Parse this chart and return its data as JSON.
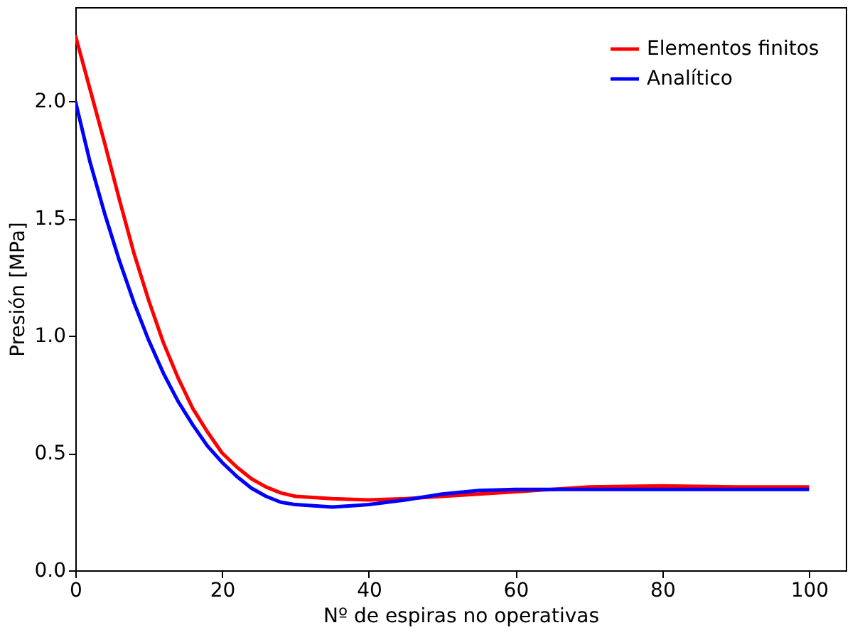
{
  "chart_data": {
    "type": "line",
    "xlabel": "Nº de espiras no operativas",
    "ylabel": "Presión [MPa]",
    "xlim": [
      0,
      105
    ],
    "ylim": [
      0,
      2.4
    ],
    "xticks": [
      0,
      20,
      40,
      60,
      80,
      100
    ],
    "yticks": [
      {
        "value": 0,
        "label": "0.0"
      },
      0.5,
      {
        "value": 1,
        "label": "1.0"
      },
      1.5,
      {
        "value": 2,
        "label": "2.0"
      }
    ],
    "grid": false,
    "legend": "top right",
    "marker": "none",
    "line_style": "solid",
    "x": [
      0,
      2,
      4,
      6,
      8,
      10,
      12,
      14,
      16,
      18,
      20,
      22,
      24,
      26,
      28,
      30,
      35,
      40,
      45,
      50,
      55,
      60,
      65,
      70,
      80,
      90,
      100
    ],
    "series": [
      {
        "name": "Elementos finitos",
        "color": "#ff0000",
        "values": [
          2.28,
          2.05,
          1.82,
          1.58,
          1.35,
          1.15,
          0.97,
          0.82,
          0.69,
          0.59,
          0.5,
          0.44,
          0.39,
          0.355,
          0.33,
          0.315,
          0.305,
          0.3,
          0.305,
          0.315,
          0.325,
          0.335,
          0.345,
          0.355,
          0.36,
          0.355,
          0.355
        ]
      },
      {
        "name": "Analítico",
        "color": "#0000ff",
        "values": [
          2.0,
          1.74,
          1.52,
          1.32,
          1.14,
          0.98,
          0.84,
          0.72,
          0.62,
          0.53,
          0.46,
          0.4,
          0.35,
          0.315,
          0.29,
          0.28,
          0.27,
          0.28,
          0.3,
          0.325,
          0.34,
          0.345,
          0.345,
          0.345,
          0.345,
          0.345,
          0.345
        ]
      }
    ]
  }
}
